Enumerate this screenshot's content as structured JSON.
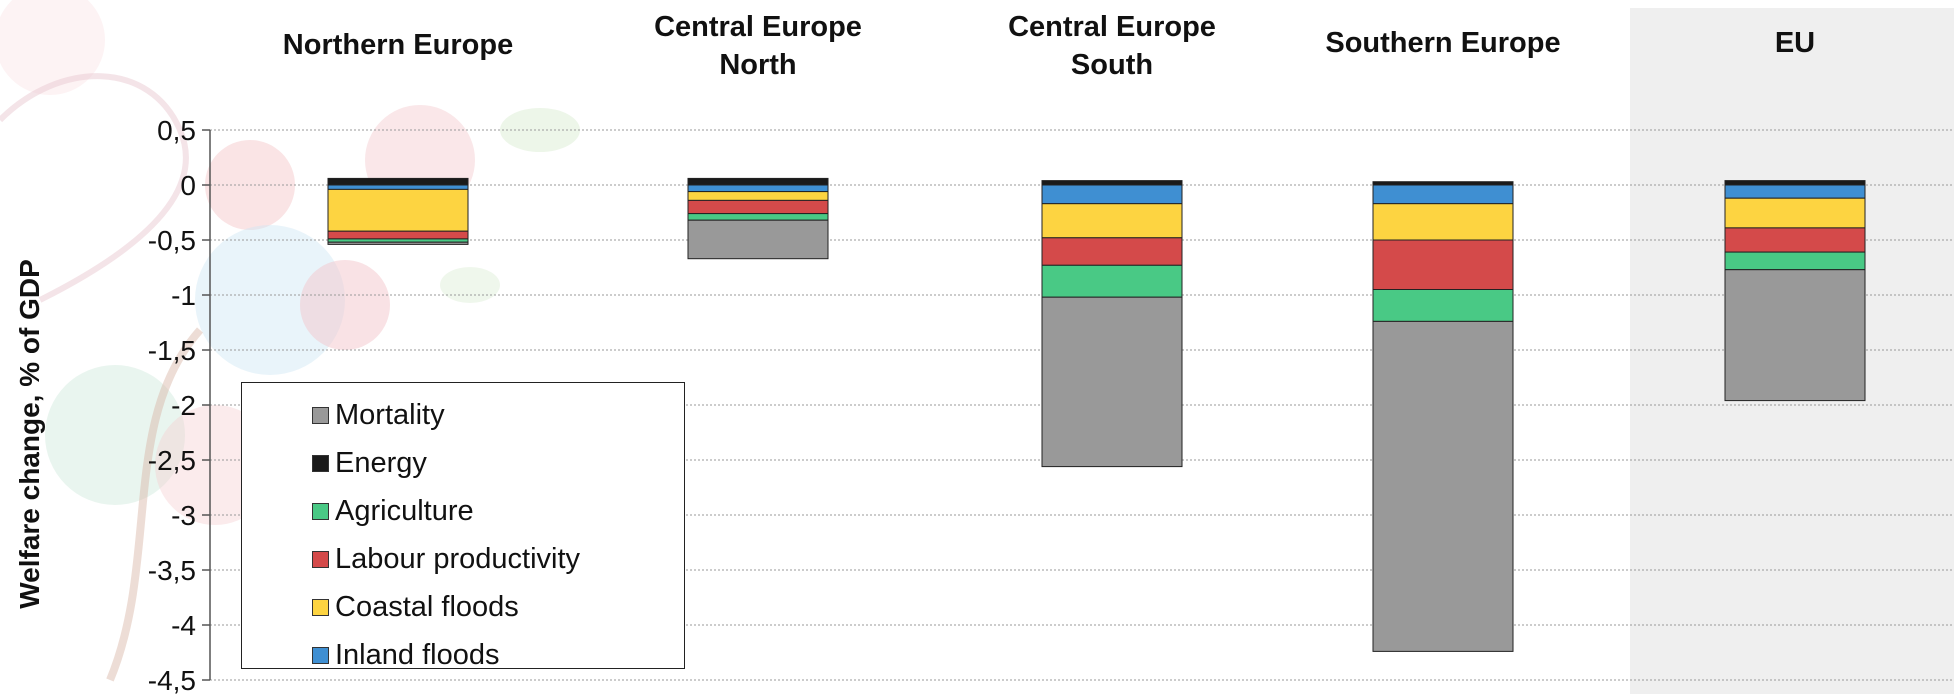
{
  "chart_data": {
    "type": "bar",
    "stacked": true,
    "title": "",
    "xlabel": "",
    "ylabel": "Welfare change, % of GDP",
    "ylim": [
      -4.5,
      0.5
    ],
    "ytick_step": 0.5,
    "yticks": [
      "0,5",
      "0",
      "-0,5",
      "-1",
      "-1,5",
      "-2",
      "-2,5",
      "-3",
      "-3,5",
      "-4",
      "-4,5"
    ],
    "grid": true,
    "legend_position": "bottom-left",
    "categories": [
      "Northern Europe",
      "Central Europe\nNorth",
      "Central Europe\nSouth",
      "Southern Europe",
      "EU"
    ],
    "series": [
      {
        "name": "Energy",
        "color": "#1a1a1a",
        "values": [
          0.06,
          0.06,
          0.04,
          0.03,
          0.04
        ]
      },
      {
        "name": "Inland floods",
        "color": "#3f8fd2",
        "values": [
          -0.04,
          -0.06,
          -0.17,
          -0.17,
          -0.12
        ]
      },
      {
        "name": "Coastal floods",
        "color": "#fdd441",
        "values": [
          -0.38,
          -0.08,
          -0.31,
          -0.33,
          -0.27
        ]
      },
      {
        "name": "Labour productivity",
        "color": "#d44a4a",
        "values": [
          -0.07,
          -0.12,
          -0.25,
          -0.45,
          -0.22
        ]
      },
      {
        "name": "Agriculture",
        "color": "#49c985",
        "values": [
          -0.03,
          -0.06,
          -0.29,
          -0.29,
          -0.16
        ]
      },
      {
        "name": "Mortality",
        "color": "#999999",
        "values": [
          -0.02,
          -0.35,
          -1.54,
          -3.0,
          -1.19
        ]
      }
    ],
    "legend_order": [
      "Mortality",
      "Energy",
      "Agriculture",
      "Labour productivity",
      "Coastal floods",
      "Inland floods"
    ]
  }
}
